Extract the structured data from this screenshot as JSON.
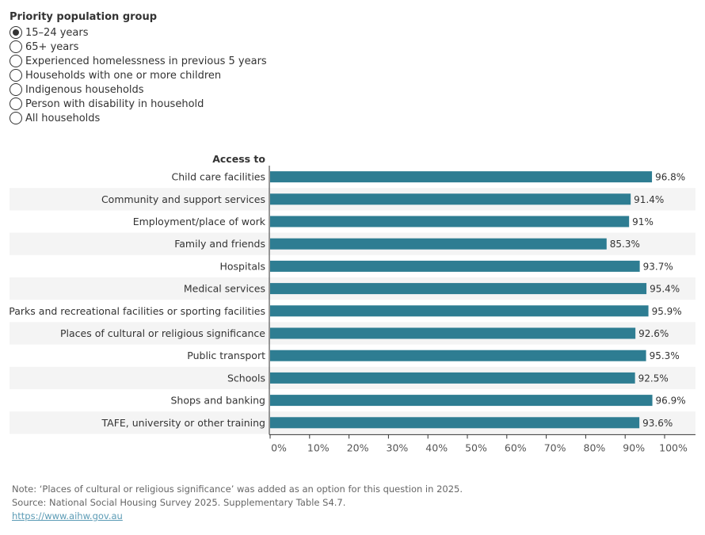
{
  "filter": {
    "title": "Priority population group",
    "options": [
      "15–24 years",
      "65+ years",
      "Experienced homelessness in previous 5 years",
      "Households with one or more children",
      "Indigenous households",
      "Person with disability in household",
      "All households"
    ],
    "selected_index": 0
  },
  "chart_data": {
    "type": "bar",
    "orientation": "horizontal",
    "category_axis_title": "Access to",
    "categories": [
      "Child care facilities",
      "Community and support services",
      "Employment/place of work",
      "Family and friends",
      "Hospitals",
      "Medical services",
      "Parks and recreational facilities or sporting facilities",
      "Places of cultural or religious significance",
      "Public transport",
      "Schools",
      "Shops and banking",
      "TAFE, university or other training"
    ],
    "values": [
      96.8,
      91.4,
      91,
      85.3,
      93.7,
      95.4,
      95.9,
      92.6,
      95.3,
      92.5,
      96.9,
      93.6
    ],
    "value_labels": [
      "96.8%",
      "91.4%",
      "91%",
      "85.3%",
      "93.7%",
      "95.4%",
      "95.9%",
      "92.6%",
      "95.3%",
      "92.5%",
      "96.9%",
      "93.6%"
    ],
    "xlim": [
      0,
      100
    ],
    "x_ticks": [
      "0%",
      "10%",
      "20%",
      "30%",
      "40%",
      "50%",
      "60%",
      "70%",
      "80%",
      "90%",
      "100%"
    ],
    "bar_color": "#2e7d92",
    "band_color": "#f4f4f4"
  },
  "footer": {
    "note": "Note: ‘Places of cultural or religious significance’ was added as an option for this question in 2025.",
    "source": "Source: National Social Housing Survey 2025. Supplementary Table S4.7.",
    "link": "https://www.aihw.gov.au"
  }
}
